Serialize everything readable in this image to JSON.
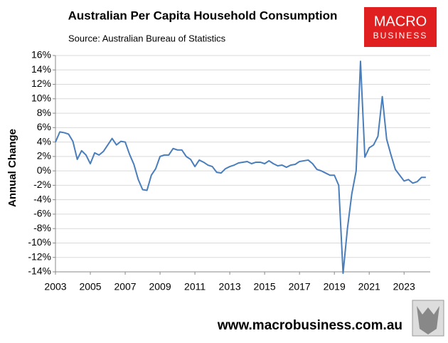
{
  "chart_data": {
    "type": "line",
    "title": "Australian Per Capita Household Consumption",
    "subtitle": "Source: Australian Bureau of Statistics",
    "y_label": "Annual Change",
    "logo": [
      "MACRO",
      "BUSINESS"
    ],
    "footer": "www.macrobusiness.com.au",
    "x": [
      2003,
      2003.25,
      2003.5,
      2003.75,
      2004,
      2004.25,
      2004.5,
      2004.75,
      2005,
      2005.25,
      2005.5,
      2005.75,
      2006,
      2006.25,
      2006.5,
      2006.75,
      2007,
      2007.25,
      2007.5,
      2007.75,
      2008,
      2008.25,
      2008.5,
      2008.75,
      2009,
      2009.25,
      2009.5,
      2009.75,
      2010,
      2010.25,
      2010.5,
      2010.75,
      2011,
      2011.25,
      2011.5,
      2011.75,
      2012,
      2012.25,
      2012.5,
      2012.75,
      2013,
      2013.25,
      2013.5,
      2013.75,
      2014,
      2014.25,
      2014.5,
      2014.75,
      2015,
      2015.25,
      2015.5,
      2015.75,
      2016,
      2016.25,
      2016.5,
      2016.75,
      2017,
      2017.25,
      2017.5,
      2017.75,
      2018,
      2018.25,
      2018.5,
      2018.75,
      2019,
      2019.25,
      2019.5,
      2019.75,
      2020,
      2020.25,
      2020.5,
      2020.75,
      2021,
      2021.25,
      2021.5,
      2021.75,
      2022,
      2022.25,
      2022.5,
      2022.75,
      2023,
      2023.25,
      2023.5,
      2023.75,
      2024,
      2024.25
    ],
    "series": [
      {
        "color": "#4a7ebb",
        "values": [
          4.0,
          5.4,
          5.3,
          5.1,
          4.1,
          1.6,
          2.8,
          2.2,
          1.0,
          2.5,
          2.2,
          2.7,
          3.6,
          4.5,
          3.6,
          4.1,
          4.0,
          2.3,
          0.9,
          -1.2,
          -2.6,
          -2.7,
          -0.6,
          0.3,
          2.0,
          2.2,
          2.2,
          3.1,
          2.9,
          2.9,
          2.0,
          1.6,
          0.6,
          1.5,
          1.2,
          0.8,
          0.6,
          -0.2,
          -0.3,
          0.3,
          0.6,
          0.8,
          1.1,
          1.2,
          1.3,
          1.0,
          1.2,
          1.2,
          1.0,
          1.4,
          1.0,
          0.7,
          0.8,
          0.5,
          0.8,
          0.9,
          1.3,
          1.4,
          1.5,
          1.0,
          0.2,
          0.0,
          -0.3,
          -0.6,
          -0.6,
          -2.0,
          -14.2,
          -8.0,
          -3.2,
          0.0,
          15.2,
          1.9,
          3.2,
          3.6,
          4.8,
          10.3,
          4.4,
          2.2,
          0.2,
          -0.6,
          -1.4,
          -1.2,
          -1.7,
          -1.5,
          -0.9,
          -0.9
        ]
      }
    ],
    "xlim": [
      2003,
      2024.5
    ],
    "xticks": [
      2003,
      2005,
      2007,
      2009,
      2011,
      2013,
      2015,
      2017,
      2019,
      2021,
      2023
    ],
    "ylim": [
      -14,
      16
    ],
    "yticks": [
      {
        "value": -14,
        "label": "-14%"
      },
      {
        "value": -12,
        "label": "-12%"
      },
      {
        "value": -10,
        "label": "-10%"
      },
      {
        "value": -8,
        "label": "-8%"
      },
      {
        "value": -6,
        "label": "-6%"
      },
      {
        "value": -4,
        "label": "-4%"
      },
      {
        "value": -2,
        "label": "-2%"
      },
      {
        "value": 0,
        "label": "0%"
      },
      {
        "value": 2,
        "label": "2%"
      },
      {
        "value": 4,
        "label": "4%"
      },
      {
        "value": 6,
        "label": "6%"
      },
      {
        "value": 8,
        "label": "8%"
      },
      {
        "value": 10,
        "label": "10%"
      },
      {
        "value": 12,
        "label": "12%"
      },
      {
        "value": 14,
        "label": "14%"
      },
      {
        "value": 16,
        "label": "16%"
      }
    ],
    "grid": true
  }
}
